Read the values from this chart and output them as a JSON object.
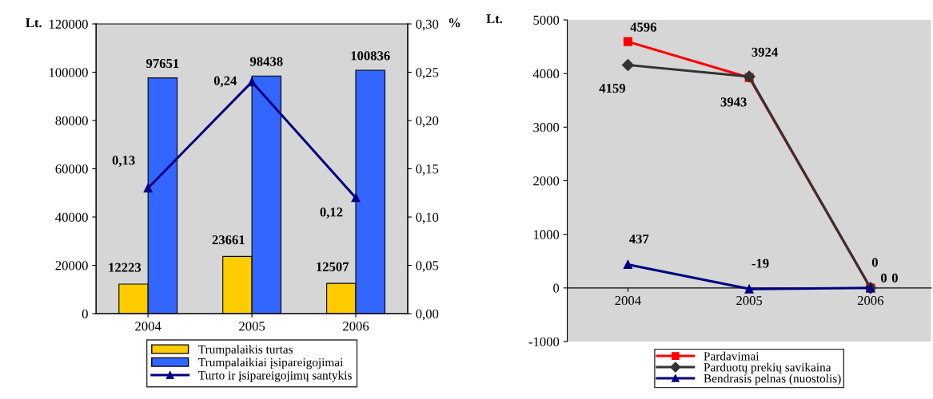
{
  "chart_data": [
    {
      "type": "bar",
      "categories": [
        "2004",
        "2005",
        "2006"
      ],
      "ylabel": "Lt.",
      "y2label": "%",
      "ylim": [
        0,
        120000
      ],
      "yticks": [
        0,
        20000,
        40000,
        60000,
        80000,
        100000,
        120000
      ],
      "y2lim": [
        0,
        0.3
      ],
      "y2ticks": [
        {
          "value": 0,
          "label": "0,00"
        },
        {
          "value": 0.05,
          "label": "0,05"
        },
        {
          "value": 0.1,
          "label": "0,10"
        },
        {
          "value": 0.15,
          "label": "0,15"
        },
        {
          "value": 0.2,
          "label": "0,20"
        },
        {
          "value": 0.25,
          "label": "0,25"
        },
        {
          "value": 0.3,
          "label": "0,30"
        }
      ],
      "legend": "bottom",
      "grid": false,
      "series": [
        {
          "name": "Trumpalaikis turtas",
          "color": "#ffcc00",
          "values": [
            12223,
            23661,
            12507
          ],
          "value_labels": [
            "12223",
            "23661",
            "12507"
          ]
        },
        {
          "name": "Trumpalaikiai įsipareigojimai",
          "color": "#3366ff",
          "values": [
            97651,
            98438,
            100836
          ],
          "value_labels": [
            "97651",
            "98438",
            "100836"
          ]
        },
        {
          "name": "Turto ir įsipareigojimų santykis",
          "type": "line",
          "axis": "y2",
          "marker": "triangle",
          "color": "#000080",
          "values": [
            0.13,
            0.24,
            0.12
          ],
          "value_labels": [
            "0,13",
            "0,24",
            "0,12"
          ]
        }
      ]
    },
    {
      "type": "line",
      "categories": [
        "2004",
        "2005",
        "2006"
      ],
      "ylabel": "Lt.",
      "ylim": [
        -1000,
        5000
      ],
      "yticks": [
        -1000,
        0,
        1000,
        2000,
        3000,
        4000,
        5000
      ],
      "legend": "bottom",
      "grid": false,
      "data_labels": true,
      "series": [
        {
          "name": "Pardavimai",
          "color": "#ff0000",
          "marker": "square",
          "values": [
            4596,
            3924,
            0
          ]
        },
        {
          "name": "Parduotų prekių savikaina",
          "color": "#333333",
          "marker": "diamond",
          "values": [
            4159,
            3943,
            0
          ]
        },
        {
          "name": "Bendrasis pelnas (nuostolis)",
          "color": "#000080",
          "marker": "triangle",
          "values": [
            437,
            -19,
            0
          ]
        }
      ]
    }
  ]
}
